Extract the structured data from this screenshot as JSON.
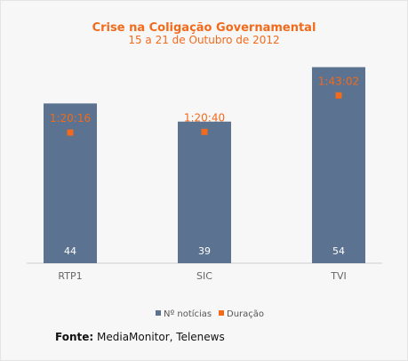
{
  "chart_data": {
    "type": "bar",
    "title": "Crise na Coligação Governamental",
    "subtitle": "15 a 21 de Outubro de 2012",
    "categories": [
      "RTP1",
      "SIC",
      "TVI"
    ],
    "series": [
      {
        "name": "Nº notícias",
        "type": "bar",
        "color": "#5b7390",
        "values": [
          44,
          39,
          54
        ]
      },
      {
        "name": "Duração",
        "type": "point",
        "color": "#f26a1b",
        "values": [
          "1:20:16",
          "1:20:40",
          "1:43:02"
        ],
        "seconds": [
          4816,
          4840,
          6182
        ]
      }
    ],
    "legend_position": "bottom",
    "grid": false
  },
  "colors": {
    "title": "#f26a1b",
    "bar": "#5b7390",
    "marker": "#f26a1b",
    "axis": "#cccccc"
  },
  "source": {
    "label": "Fonte:",
    "text": "MediaMonitor, Telenews"
  }
}
